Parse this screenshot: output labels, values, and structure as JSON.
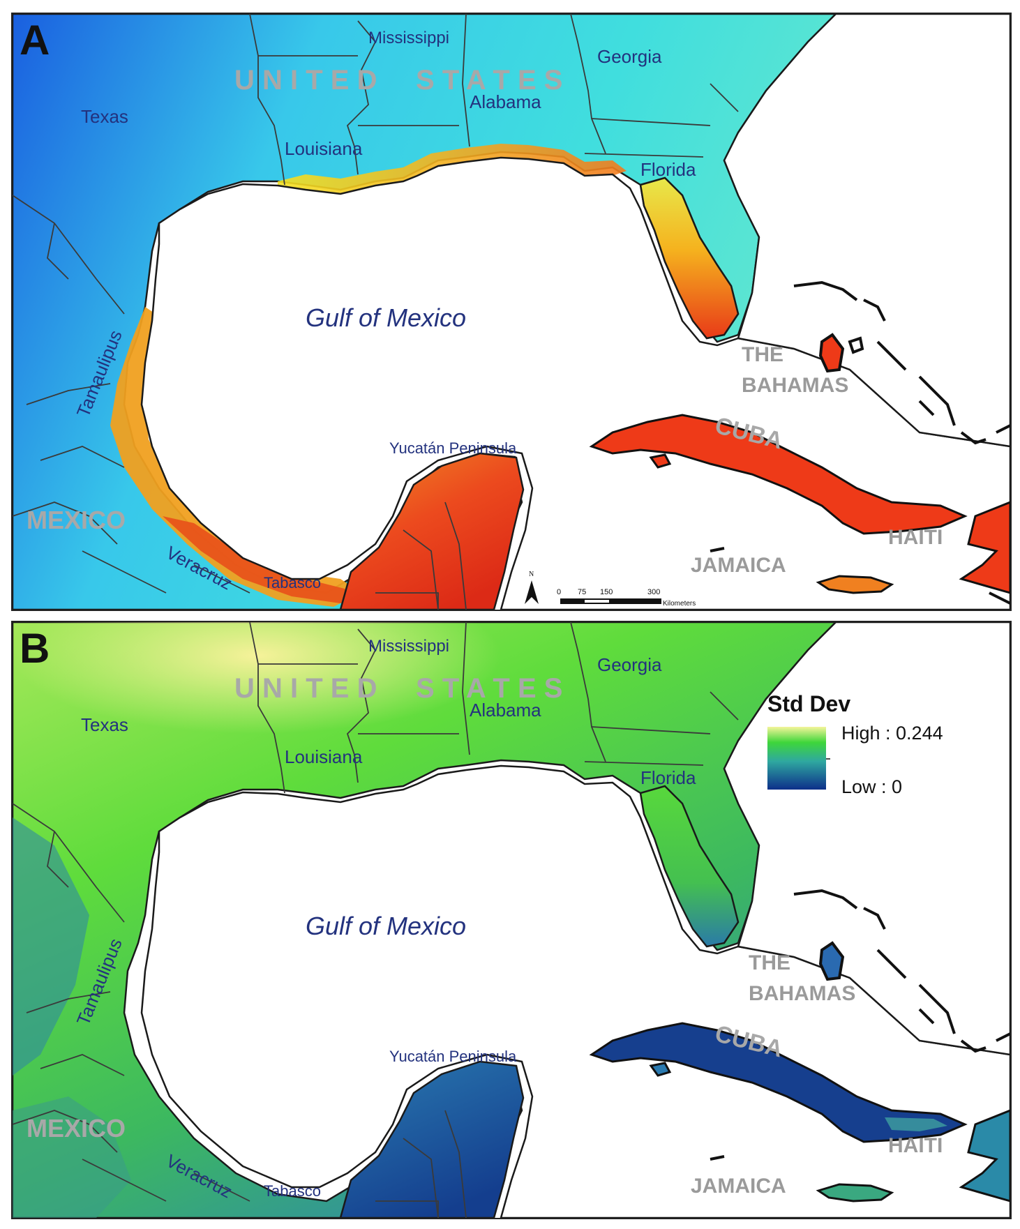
{
  "panels": [
    {
      "letter": "A",
      "labels": {
        "country_us": "U N I T E D     S T A T E S",
        "texas": "Texas",
        "mississippi": "Mississippi",
        "alabama": "Alabama",
        "georgia": "Georgia",
        "louisiana": "Louisiana",
        "florida": "Florida",
        "gulf": "Gulf of Mexico",
        "the": "THE",
        "bahamas": "BAHAMAS",
        "cuba": "CUBA",
        "haiti": "HAITI",
        "jamaica": "JAMAICA",
        "mexico": "MEXICO",
        "tamaulipas": "Tamaulipus",
        "veracruz": "Veracruz",
        "tabasco": "Tabasco",
        "yucatan": "Yucatán Peninsula"
      },
      "scalebar": {
        "north": "N",
        "t0": "0",
        "t75": "75",
        "t150": "150",
        "t300": "300",
        "unit": "Kilometers"
      }
    },
    {
      "letter": "B",
      "labels": {
        "country_us": "U N I T E D     S T A T E S",
        "texas": "Texas",
        "mississippi": "Mississippi",
        "alabama": "Alabama",
        "georgia": "Georgia",
        "louisiana": "Louisiana",
        "florida": "Florida",
        "gulf": "Gulf of Mexico",
        "the": "THE",
        "bahamas": "BAHAMAS",
        "cuba": "CUBA",
        "haiti": "HAITI",
        "jamaica": "JAMAICA",
        "mexico": "MEXICO",
        "tamaulipas": "Tamaulipus",
        "veracruz": "Veracruz",
        "tabasco": "Tabasco",
        "yucatan": "Yucatán Peninsula"
      },
      "legend": {
        "title": "Std Dev",
        "high": "High : 0.244",
        "low": "Low : 0"
      }
    }
  ],
  "colors": {
    "panel_a": {
      "cool": "#1a5fe0",
      "mid": "#38d6e8",
      "warm": "#f2e21c",
      "hot": "#e8321a"
    },
    "panel_b": {
      "low": "#0d2f8a",
      "mid": "#2fa8a0",
      "green": "#3ed63a",
      "high": "#f4f59a"
    },
    "ocean": "#ffffff",
    "border": "#1a1a1a",
    "label_gray": "#9a9a9a",
    "label_blue": "#1f2f7a"
  }
}
